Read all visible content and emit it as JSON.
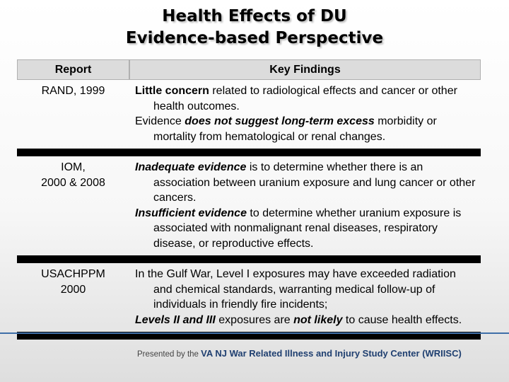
{
  "title": {
    "line1": "Health Effects of DU",
    "line2": "Evidence-based Perspective"
  },
  "table": {
    "headers": {
      "report": "Report",
      "key_findings": "Key Findings"
    },
    "rows": [
      {
        "report_line1": "RAND, 1999",
        "report_line2": "",
        "p1": {
          "b": "Little concern",
          "t": " related to radiological effects and cancer or other health outcomes."
        },
        "p2": {
          "t1": "Evidence ",
          "bi": "does not suggest long-term excess",
          "t2": " morbidity or mortality from hematological or renal changes."
        }
      },
      {
        "report_line1": "IOM,",
        "report_line2": "2000 & 2008",
        "p1": {
          "bi": "Inadequate evidence",
          "t": " is to determine whether there is an association between uranium exposure and lung cancer or other cancers."
        },
        "p2": {
          "bi": "Insufficient evidence",
          "t": " to determine whether uranium exposure is associated with nonmalignant renal diseases, respiratory disease, or reproductive effects."
        }
      },
      {
        "report_line1": "USACHPPM",
        "report_line2": "2000",
        "p1": {
          "t": "In the Gulf War, Level I exposures may have exceeded radiation and chemical standards, warranting medical follow-up of individuals in friendly fire incidents;"
        },
        "p2": {
          "bi1": "Levels II and III",
          "t1": " exposures are ",
          "bi2": "not likely",
          "t2": " to cause health effects."
        }
      }
    ]
  },
  "footer": {
    "prefix": "Presented by the ",
    "center": "VA NJ War Related Illness and Injury Study Center (WRIISC)"
  }
}
